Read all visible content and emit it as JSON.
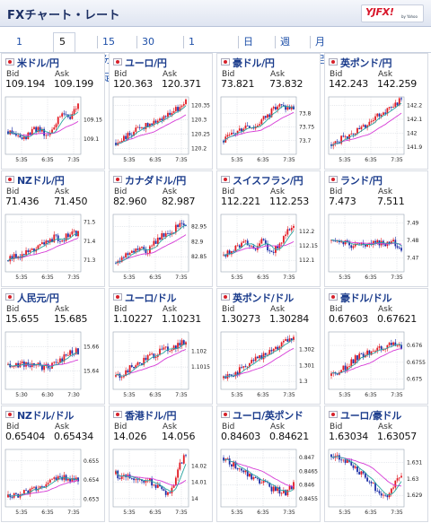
{
  "header": {
    "title": "FXチャート・レート",
    "logo_text": "YJFX!",
    "logo_sub": "by Yahoo"
  },
  "tabs": [
    {
      "label": "1分足",
      "active": false
    },
    {
      "label": "5分足",
      "active": true
    },
    {
      "label": "15分足",
      "active": false
    },
    {
      "label": "30分足",
      "active": false
    },
    {
      "label": "1時間足",
      "active": false
    },
    {
      "label": "日足",
      "active": false
    },
    {
      "label": "週足",
      "active": false
    },
    {
      "label": "月足",
      "active": false
    }
  ],
  "labels": {
    "bid": "Bid",
    "ask": "Ask"
  },
  "colors": {
    "up": "#e21b23",
    "down": "#1d2fa8",
    "ma_short": "#2aa6a0",
    "ma_long": "#d63ad6",
    "grid": "#cfd4dc"
  },
  "cards": [
    {
      "pair": "米ドル/円",
      "bid": "109.194",
      "ask": "109.199",
      "flag": "us-flag-icon"
    },
    {
      "pair": "ユーロ/円",
      "bid": "120.363",
      "ask": "120.371",
      "flag": "eu-flag-icon"
    },
    {
      "pair": "豪ドル/円",
      "bid": "73.821",
      "ask": "73.832",
      "flag": "au-flag-icon"
    },
    {
      "pair": "英ポンド/円",
      "bid": "142.243",
      "ask": "142.259",
      "flag": "uk-flag-icon"
    },
    {
      "pair": "NZドル/円",
      "bid": "71.436",
      "ask": "71.450",
      "flag": "nz-flag-icon"
    },
    {
      "pair": "カナダドル/円",
      "bid": "82.960",
      "ask": "82.987",
      "flag": "ca-flag-icon"
    },
    {
      "pair": "スイスフラン/円",
      "bid": "112.221",
      "ask": "112.253",
      "flag": "ch-flag-icon"
    },
    {
      "pair": "ランド/円",
      "bid": "7.473",
      "ask": "7.511",
      "flag": "za-flag-icon"
    },
    {
      "pair": "人民元/円",
      "bid": "15.655",
      "ask": "15.685",
      "flag": "cn-flag-icon"
    },
    {
      "pair": "ユーロ/ドル",
      "bid": "1.10227",
      "ask": "1.10231",
      "flag": "eu-flag-icon"
    },
    {
      "pair": "英ポンド/ドル",
      "bid": "1.30273",
      "ask": "1.30284",
      "flag": "uk-flag-icon"
    },
    {
      "pair": "豪ドル/ドル",
      "bid": "0.67603",
      "ask": "0.67621",
      "flag": "au-flag-icon"
    },
    {
      "pair": "NZドル/ドル",
      "bid": "0.65404",
      "ask": "0.65434",
      "flag": "nz-flag-icon"
    },
    {
      "pair": "香港ドル/円",
      "bid": "14.026",
      "ask": "14.056",
      "flag": "hk-flag-icon"
    },
    {
      "pair": "ユーロ/英ポンド",
      "bid": "0.84603",
      "ask": "0.84621",
      "flag": "eu-flag-icon"
    },
    {
      "pair": "ユーロ/豪ドル",
      "bid": "1.63034",
      "ask": "1.63057",
      "flag": "eu-flag-icon"
    }
  ],
  "chart_data": [
    {
      "type": "candlestick",
      "pair": "米ドル/円",
      "x_ticks": [
        "5:35",
        "6:35",
        "7:35"
      ],
      "y_ticks": [
        "109.15",
        "109.1"
      ],
      "ylim": [
        109.06,
        109.21
      ],
      "trend": [
        109.12,
        109.11,
        109.1,
        109.12,
        109.13,
        109.11,
        109.14,
        109.17,
        109.16,
        109.19
      ]
    },
    {
      "type": "candlestick",
      "pair": "ユーロ/円",
      "x_ticks": [
        "5:35",
        "6:35",
        "7:35"
      ],
      "y_ticks": [
        "120.35",
        "120.3",
        "120.25",
        "120.2"
      ],
      "ylim": [
        120.18,
        120.38
      ],
      "trend": [
        120.22,
        120.24,
        120.25,
        120.27,
        120.28,
        120.3,
        120.31,
        120.32,
        120.34,
        120.36
      ]
    },
    {
      "type": "candlestick",
      "pair": "豪ドル/円",
      "x_ticks": [
        "5:35",
        "6:35",
        "7:35"
      ],
      "y_ticks": [
        "73.8",
        "73.75",
        "73.7"
      ],
      "ylim": [
        73.65,
        73.86
      ],
      "trend": [
        73.7,
        73.72,
        73.74,
        73.76,
        73.75,
        73.78,
        73.8,
        73.83,
        73.82,
        73.82
      ]
    },
    {
      "type": "candlestick",
      "pair": "英ポンド/円",
      "x_ticks": [
        "5:35",
        "6:35",
        "7:35"
      ],
      "y_ticks": [
        "142.2",
        "142.1",
        "142",
        "141.9"
      ],
      "ylim": [
        141.85,
        142.26
      ],
      "trend": [
        141.92,
        141.95,
        141.98,
        142.02,
        142.05,
        142.08,
        142.12,
        142.15,
        142.2,
        142.24
      ]
    },
    {
      "type": "candlestick",
      "pair": "NZドル/円",
      "x_ticks": [
        "5:35",
        "6:35",
        "7:35"
      ],
      "y_ticks": [
        "71.5",
        "71.4",
        "71.3"
      ],
      "ylim": [
        71.24,
        71.54
      ],
      "trend": [
        71.3,
        71.32,
        71.33,
        71.35,
        71.37,
        71.4,
        71.42,
        71.41,
        71.44,
        71.44
      ]
    },
    {
      "type": "candlestick",
      "pair": "カナダドル/円",
      "x_ticks": [
        "5:35",
        "6:35",
        "7:35"
      ],
      "y_ticks": [
        "82.95",
        "82.9",
        "82.85"
      ],
      "ylim": [
        82.8,
        82.99
      ],
      "trend": [
        82.83,
        82.85,
        82.86,
        82.88,
        82.87,
        82.9,
        82.92,
        82.93,
        82.95,
        82.96
      ]
    },
    {
      "type": "candlestick",
      "pair": "スイスフラン/円",
      "x_ticks": [
        "5:35",
        "6:35",
        "7:35"
      ],
      "y_ticks": [
        "112.2",
        "112.15",
        "112.1"
      ],
      "ylim": [
        112.06,
        112.26
      ],
      "trend": [
        112.12,
        112.13,
        112.15,
        112.16,
        112.14,
        112.17,
        112.12,
        112.15,
        112.19,
        112.22
      ]
    },
    {
      "type": "candlestick",
      "pair": "ランド/円",
      "x_ticks": [
        "5:35",
        "6:35",
        "7:35"
      ],
      "y_ticks": [
        "7.49",
        "7.48",
        "7.47"
      ],
      "ylim": [
        7.462,
        7.495
      ],
      "trend": [
        7.48,
        7.478,
        7.479,
        7.476,
        7.478,
        7.477,
        7.479,
        7.478,
        7.48,
        7.473
      ]
    },
    {
      "type": "candlestick",
      "pair": "人民元/円",
      "x_ticks": [
        "5:30",
        "6:30",
        "7:30"
      ],
      "y_ticks": [
        "15.66",
        "15.64"
      ],
      "ylim": [
        15.625,
        15.672
      ],
      "trend": [
        15.645,
        15.644,
        15.646,
        15.645,
        15.644,
        15.643,
        15.646,
        15.65,
        15.656,
        15.656
      ]
    },
    {
      "type": "candlestick",
      "pair": "ユーロ/ドル",
      "x_ticks": [
        "5:35",
        "6:35",
        "7:35"
      ],
      "y_ticks": [
        "1.102",
        "1.1015"
      ],
      "ylim": [
        1.1008,
        1.1026
      ],
      "trend": [
        1.1012,
        1.1013,
        1.1015,
        1.1016,
        1.1018,
        1.1019,
        1.102,
        1.1021,
        1.1022,
        1.1023
      ]
    },
    {
      "type": "candlestick",
      "pair": "英ポンド/ドル",
      "x_ticks": [
        "5:35",
        "6:35",
        "7:35"
      ],
      "y_ticks": [
        "1.302",
        "1.301",
        "1.3"
      ],
      "ylim": [
        1.2995,
        1.3031
      ],
      "trend": [
        1.3002,
        1.3004,
        1.3007,
        1.301,
        1.3013,
        1.3016,
        1.3019,
        1.3022,
        1.3025,
        1.3027
      ]
    },
    {
      "type": "candlestick",
      "pair": "豪ドル/ドル",
      "x_ticks": [
        "5:35",
        "6:35",
        "7:35"
      ],
      "y_ticks": [
        "0.676",
        "0.6755",
        "0.675"
      ],
      "ylim": [
        0.6747,
        0.6764
      ],
      "trend": [
        0.6751,
        0.6752,
        0.6754,
        0.6756,
        0.6757,
        0.6758,
        0.6759,
        0.676,
        0.676,
        0.676
      ]
    },
    {
      "type": "candlestick",
      "pair": "NZドル/ドル",
      "x_ticks": [
        "5:35",
        "6:35",
        "7:35"
      ],
      "y_ticks": [
        "0.655",
        "0.654",
        "0.653"
      ],
      "ylim": [
        0.6526,
        0.6556
      ],
      "trend": [
        0.6531,
        0.6532,
        0.6534,
        0.6535,
        0.6537,
        0.6539,
        0.6541,
        0.6542,
        0.6541,
        0.654
      ]
    },
    {
      "type": "candlestick",
      "pair": "香港ドル/円",
      "x_ticks": [
        "5:35",
        "6:35",
        "7:35"
      ],
      "y_ticks": [
        "14.02",
        "14.01",
        "14"
      ],
      "ylim": [
        13.995,
        14.03
      ],
      "trend": [
        14.015,
        14.013,
        14.014,
        14.012,
        14.011,
        14.009,
        14.005,
        14.001,
        14.02,
        14.026
      ]
    },
    {
      "type": "candlestick",
      "pair": "ユーロ/英ポンド",
      "x_ticks": [
        "5:35",
        "6:35",
        "7:35"
      ],
      "y_ticks": [
        "0.847",
        "0.8465",
        "0.846",
        "0.8455"
      ],
      "ylim": [
        0.8452,
        0.8473
      ],
      "trend": [
        0.847,
        0.8468,
        0.8466,
        0.8464,
        0.8462,
        0.8461,
        0.8459,
        0.8458,
        0.8457,
        0.846
      ]
    },
    {
      "type": "candlestick",
      "pair": "ユーロ/豪ドル",
      "x_ticks": [
        "5:35",
        "6:35",
        "7:35"
      ],
      "y_ticks": [
        "1.631",
        "1.63",
        "1.629"
      ],
      "ylim": [
        1.6283,
        1.6318
      ],
      "trend": [
        1.6315,
        1.6313,
        1.631,
        1.6306,
        1.6302,
        1.6298,
        1.6292,
        1.6288,
        1.6296,
        1.6303
      ]
    }
  ]
}
